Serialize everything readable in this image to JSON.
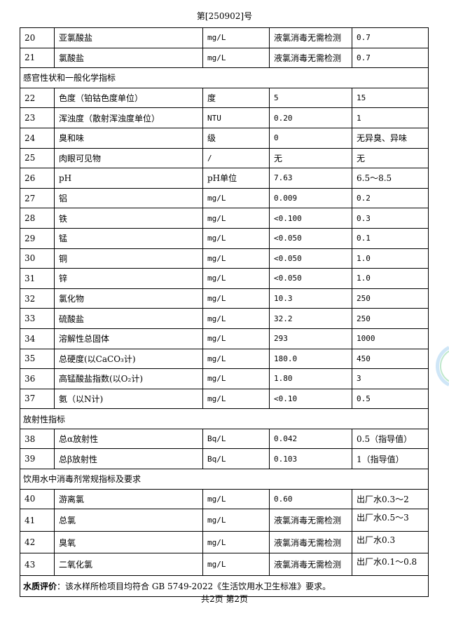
{
  "header": {
    "report_no": "第[250902]号"
  },
  "rows": [
    {
      "type": "item",
      "no": "20",
      "name": "亚氯酸盐",
      "unit": "mg/L",
      "result": "液氯消毒无需检测",
      "limit": "0.7"
    },
    {
      "type": "item",
      "no": "21",
      "name": "氯酸盐",
      "unit": "mg/L",
      "result": "液氯消毒无需检测",
      "limit": "0.7"
    },
    {
      "type": "section",
      "title": "感官性状和一般化学指标"
    },
    {
      "type": "item",
      "no": "22",
      "name": "色度（铂钴色度单位）",
      "unit": "度",
      "result": "5",
      "limit": "15"
    },
    {
      "type": "item",
      "no": "23",
      "name": "浑浊度（散射浑浊度单位）",
      "unit": "NTU",
      "result": "0.20",
      "limit": "1"
    },
    {
      "type": "item",
      "no": "24",
      "name": "臭和味",
      "unit": "级",
      "result": "0",
      "limit": "无异臭、异味"
    },
    {
      "type": "item",
      "no": "25",
      "name": "肉眼可见物",
      "unit": "/",
      "result": "无",
      "limit": "无"
    },
    {
      "type": "item",
      "no": "26",
      "name": "pH",
      "unit": "pH单位",
      "result": "7.63",
      "limit": "6.5～8.5"
    },
    {
      "type": "item",
      "no": "27",
      "name": "铝",
      "unit": "mg/L",
      "result": "0.009",
      "limit": "0.2"
    },
    {
      "type": "item",
      "no": "28",
      "name": "铁",
      "unit": "mg/L",
      "result": "<0.100",
      "limit": "0.3"
    },
    {
      "type": "item",
      "no": "29",
      "name": "锰",
      "unit": "mg/L",
      "result": "<0.050",
      "limit": "0.1"
    },
    {
      "type": "item",
      "no": "30",
      "name": "铜",
      "unit": "mg/L",
      "result": "<0.050",
      "limit": "1.0"
    },
    {
      "type": "item",
      "no": "31",
      "name": "锌",
      "unit": "mg/L",
      "result": "<0.050",
      "limit": "1.0"
    },
    {
      "type": "item",
      "no": "32",
      "name": "氯化物",
      "unit": "mg/L",
      "result": "10.3",
      "limit": "250"
    },
    {
      "type": "item",
      "no": "33",
      "name": "硫酸盐",
      "unit": "mg/L",
      "result": "32.2",
      "limit": "250"
    },
    {
      "type": "item",
      "no": "34",
      "name": "溶解性总固体",
      "unit": "mg/L",
      "result": "293",
      "limit": "1000"
    },
    {
      "type": "item",
      "no": "35",
      "name": "总硬度(以CaCO₃计)",
      "unit": "mg/L",
      "result": "180.0",
      "limit": "450"
    },
    {
      "type": "item",
      "no": "36",
      "name": "高锰酸盐指数(以O₂计)",
      "unit": "mg/L",
      "result": "1.80",
      "limit": "3"
    },
    {
      "type": "item",
      "no": "37",
      "name": "氨（以N计)",
      "unit": "mg/L",
      "result": "<0.10",
      "limit": "0.5"
    },
    {
      "type": "section",
      "title": "放射性指标"
    },
    {
      "type": "item",
      "no": "38",
      "name": "总α放射性",
      "unit": "Bq/L",
      "result": "0.042",
      "limit": "0.5（指导值）"
    },
    {
      "type": "item",
      "no": "39",
      "name": "总β放射性",
      "unit": "Bq/L",
      "result": "0.103",
      "limit": "1（指导值）"
    },
    {
      "type": "section",
      "title": "饮用水中消毒剂常规指标及要求"
    },
    {
      "type": "item",
      "no": "40",
      "name": "游离氯",
      "unit": "mg/L",
      "result": "0.60",
      "limit": "出厂水0.3～2"
    },
    {
      "type": "item",
      "no": "41",
      "name": "总氯",
      "unit": "mg/L",
      "result": "液氯消毒无需检测",
      "limit": "出厂水0.5～3",
      "top": true
    },
    {
      "type": "item",
      "no": "42",
      "name": "臭氧",
      "unit": "mg/L",
      "result": "液氯消毒无需检测",
      "limit": "出厂水0.3",
      "top": true
    },
    {
      "type": "item",
      "no": "43",
      "name": "二氧化氯",
      "unit": "mg/L",
      "result": "液氯消毒无需检测",
      "limit": "出厂水0.1～0.8",
      "top": true
    }
  ],
  "evaluation": {
    "label": "水质评价",
    "text": "：该水样所检项目均符合 GB  5749-2022《生活饮用水卫生标准》要求。"
  },
  "footer": {
    "pages": "共2页 第2页"
  },
  "colors": {
    "seal_ring": "#cfe6f7",
    "seal_inner": "#bfe8cc"
  }
}
